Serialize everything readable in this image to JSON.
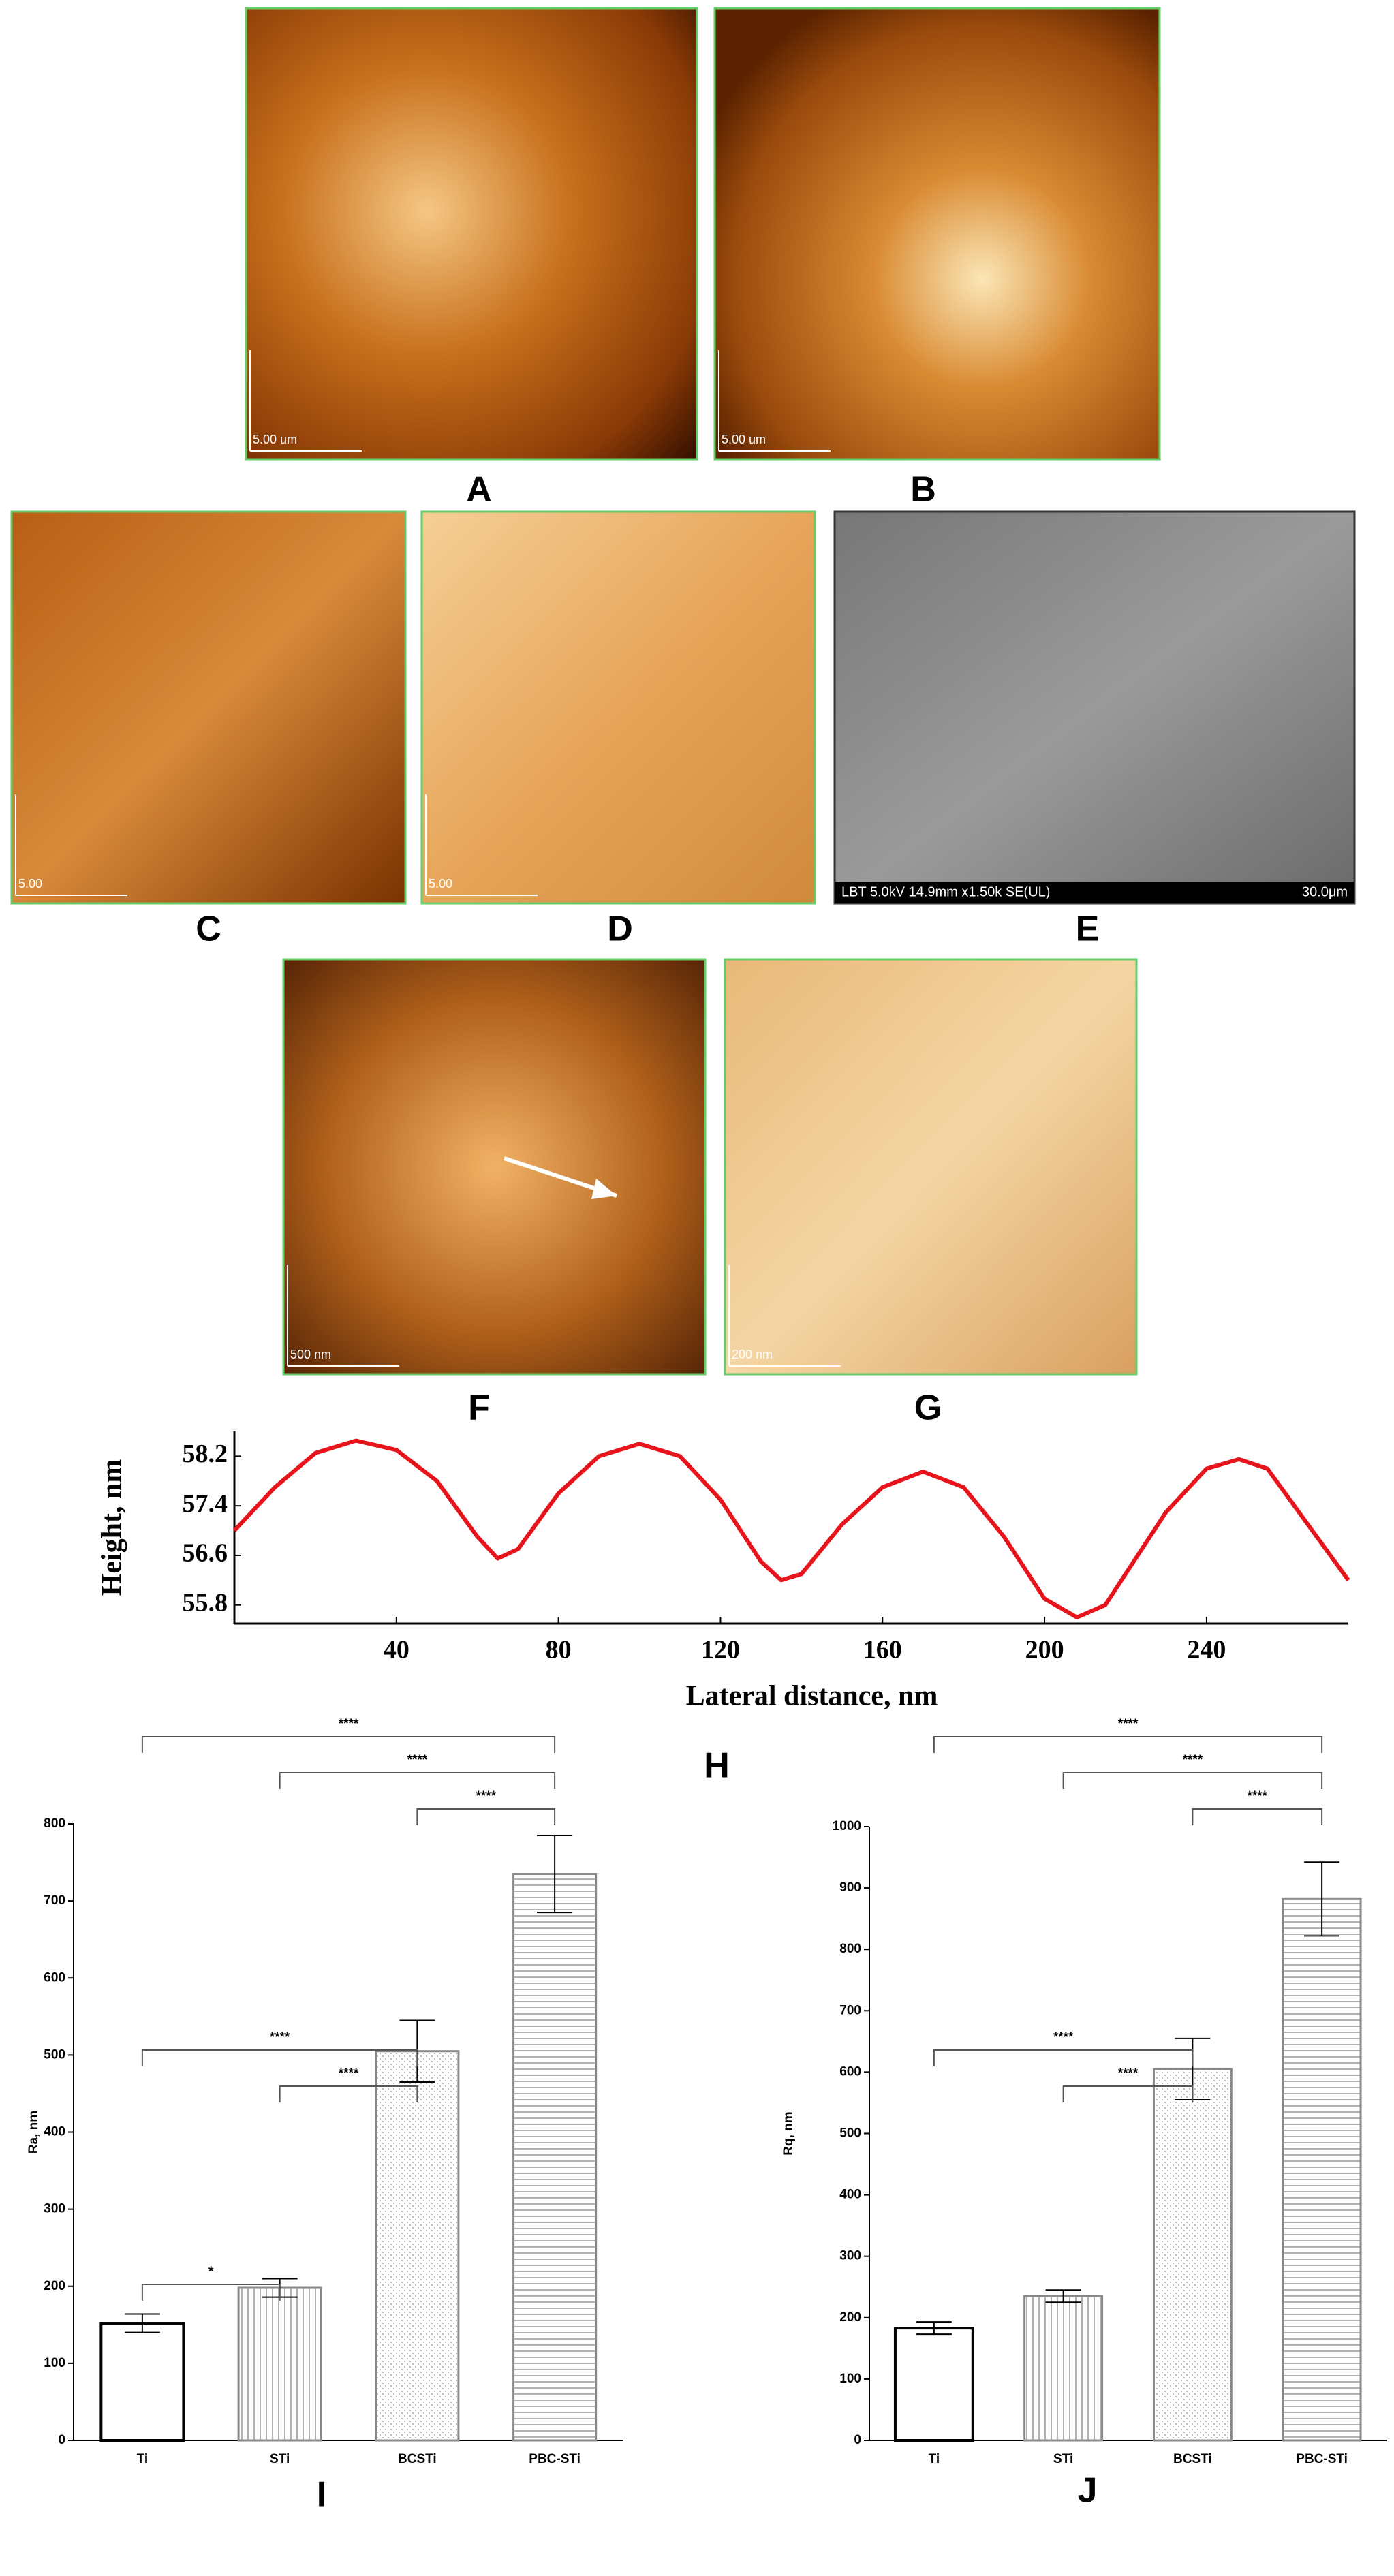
{
  "panel_labels": [
    "A",
    "B",
    "C",
    "D",
    "E",
    "F",
    "G",
    "H",
    "I",
    "J"
  ],
  "images": [
    {
      "scale_bar": "5.00 um"
    },
    {
      "scale_bar": "5.00 um"
    },
    {
      "scale_bar": "5.00"
    },
    {
      "scale_bar": "5.00"
    },
    {
      "caption": "LBT 5.0kV 14.9mm x1.50k SE(UL)",
      "scale_bar": "30.0μm"
    },
    {
      "scale_bar": "500 nm"
    },
    {
      "scale_bar": "200 nm"
    }
  ],
  "chart_data": [
    {
      "type": "line",
      "x_label": "Lateral distance, nm",
      "y_label": "Height, nm",
      "color": "#e8141b",
      "x": [
        0,
        10,
        20,
        30,
        40,
        50,
        60,
        65,
        70,
        80,
        90,
        100,
        110,
        120,
        130,
        135,
        140,
        150,
        160,
        170,
        180,
        190,
        200,
        208,
        215,
        220,
        230,
        240,
        248,
        255,
        265,
        275
      ],
      "values": [
        57.0,
        57.7,
        58.25,
        58.45,
        58.3,
        57.8,
        56.9,
        56.55,
        56.7,
        57.6,
        58.2,
        58.4,
        58.2,
        57.5,
        56.5,
        56.2,
        56.3,
        57.1,
        57.7,
        57.95,
        57.7,
        56.9,
        55.9,
        55.6,
        55.8,
        56.3,
        57.3,
        58.0,
        58.15,
        58.0,
        57.1,
        56.2
      ],
      "xlim": [
        0,
        275
      ],
      "xticks": [
        40,
        80,
        120,
        160,
        200,
        240
      ],
      "ylim": [
        55.5,
        58.6
      ],
      "yticks": [
        55.8,
        56.6,
        57.4,
        58.2
      ]
    },
    {
      "type": "bar",
      "y_label": "Ra, nm",
      "categories": [
        "Ti",
        "STi",
        "BCSTi",
        "PBC-STi"
      ],
      "values": [
        152,
        198,
        505,
        735
      ],
      "errors": [
        12,
        12,
        40,
        50
      ],
      "ylim": [
        0,
        800
      ],
      "yticks": [
        0,
        100,
        200,
        300,
        400,
        500,
        600,
        700,
        800
      ],
      "significance": [
        {
          "pair": [
            "Ti",
            "STi"
          ],
          "label": "*"
        },
        {
          "pair": [
            "STi",
            "BCSTi"
          ],
          "label": "****"
        },
        {
          "pair": [
            "Ti",
            "BCSTi"
          ],
          "label": "****"
        },
        {
          "pair": [
            "BCSTi",
            "PBC-STi"
          ],
          "label": "****"
        },
        {
          "pair": [
            "STi",
            "PBC-STi"
          ],
          "label": "****"
        },
        {
          "pair": [
            "Ti",
            "PBC-STi"
          ],
          "label": "****"
        }
      ]
    },
    {
      "type": "bar",
      "y_label": "Rq, nm",
      "categories": [
        "Ti",
        "STi",
        "BCSTi",
        "PBC-STi"
      ],
      "values": [
        183,
        235,
        605,
        882
      ],
      "errors": [
        10,
        10,
        50,
        60
      ],
      "ylim": [
        0,
        1000
      ],
      "yticks": [
        0,
        100,
        200,
        300,
        400,
        500,
        600,
        700,
        800,
        900,
        1000
      ],
      "significance": [
        {
          "pair": [
            "STi",
            "BCSTi"
          ],
          "label": "****"
        },
        {
          "pair": [
            "Ti",
            "BCSTi"
          ],
          "label": "****"
        },
        {
          "pair": [
            "BCSTi",
            "PBC-STi"
          ],
          "label": "****"
        },
        {
          "pair": [
            "STi",
            "PBC-STi"
          ],
          "label": "****"
        },
        {
          "pair": [
            "Ti",
            "PBC-STi"
          ],
          "label": "****"
        }
      ]
    }
  ]
}
